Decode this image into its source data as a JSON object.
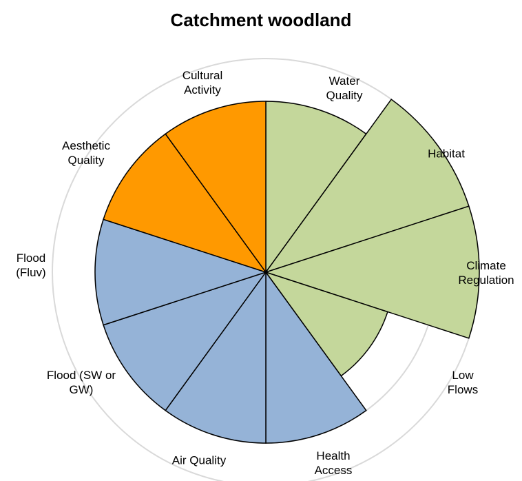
{
  "chart_data": {
    "type": "polar_area",
    "title": "Catchment woodland",
    "categories": [
      "Water Quality",
      "Habitat",
      "Climate Regulation",
      "Low Flows",
      "Health Access",
      "Air Quality",
      "Flood (SW or GW)",
      "Flood (Fluv)",
      "Aesthetic Quality",
      "Cultural Activity"
    ],
    "values": [
      4,
      5,
      5,
      3,
      4,
      4,
      4,
      4,
      4,
      4
    ],
    "colors": [
      "#c4d79b",
      "#c4d79b",
      "#c4d79b",
      "#c4d79b",
      "#95b3d7",
      "#95b3d7",
      "#95b3d7",
      "#95b3d7",
      "#ff9900",
      "#ff9900"
    ],
    "ylim": [
      0,
      5
    ],
    "yticks": [
      4,
      5
    ],
    "grid": true
  }
}
